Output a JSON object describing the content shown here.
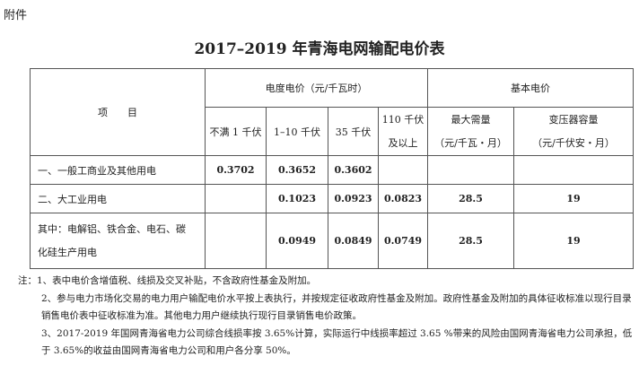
{
  "attachment": "附件",
  "title": "2017–2019 年青海电网输配电价表",
  "header": {
    "item": "项　　目",
    "energy_price": "电度电价（元/千瓦时）",
    "basic_price": "基本电价",
    "cols": [
      "不满 1 千伏",
      "1–10 千伏",
      "35 千伏"
    ],
    "col110": [
      "110 千伏",
      "及以上"
    ],
    "max_demand": [
      "最大需量",
      "（元/千瓦・月）"
    ],
    "transformer": [
      "变压器容量",
      "（元/千伏安・月）"
    ]
  },
  "rows": [
    {
      "name": "一、一般工商业及其他用电",
      "v": [
        "0.3702",
        "0.3652",
        "0.3602",
        "",
        "",
        ""
      ]
    },
    {
      "name": "二、大工业用电",
      "v": [
        "",
        "0.1023",
        "0.0923",
        "0.0823",
        "28.5",
        "19"
      ]
    },
    {
      "name": [
        "其中：电解铝、铁合金、电石、碳",
        "化硅生产用电"
      ],
      "v": [
        "",
        "0.0949",
        "0.0849",
        "0.0749",
        "28.5",
        "19"
      ]
    }
  ],
  "notes": {
    "label": "注：",
    "items": [
      "1、表中电价含增值税、线损及交叉补贴，不含政府性基金及附加。",
      "2、参与电力市场化交易的电力用户输配电价水平按上表执行，并按规定征收政府性基金及附加。政府性基金及附加的具体征收标准以现行目录销售电价表中征收标准为准。其他电力用户继续执行现行目录销售电价政策。",
      "3、2017-2019 年国网青海省电力公司综合线损率按 3.65%计算，实际运行中线损率超过 3.65 %带来的风险由国网青海省电力公司承担，低于 3.65%的收益由国网青海省电力公司和用户各分享 50%。"
    ]
  }
}
